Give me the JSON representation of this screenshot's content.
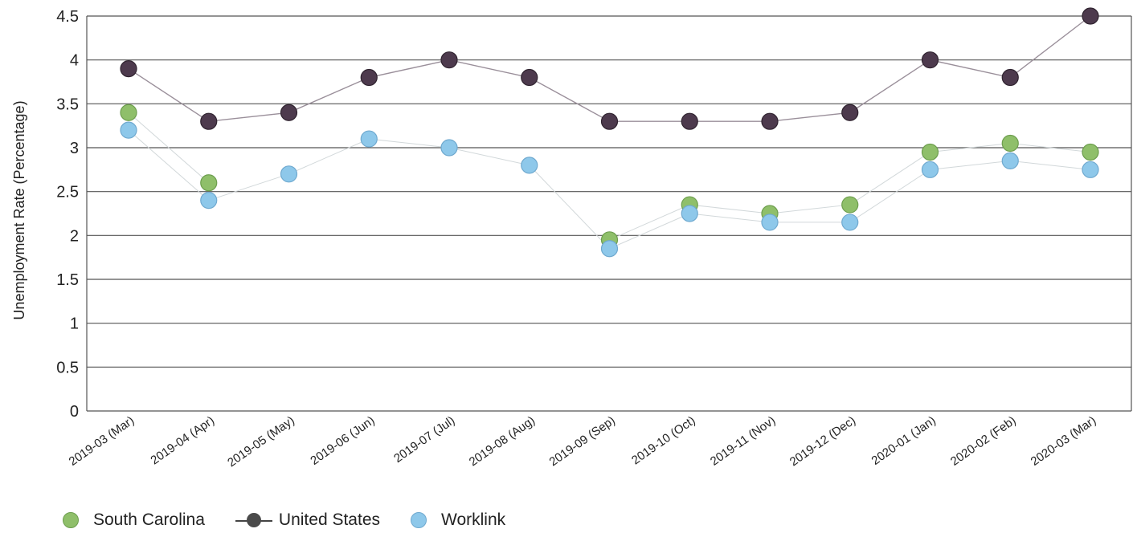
{
  "chart_data": {
    "type": "line",
    "title": "",
    "ylabel": "Unemployment Rate (Percentage)",
    "xlabel": "",
    "ylim": [
      0,
      4.5
    ],
    "yticks": [
      "0",
      "0.5",
      "1",
      "1.5",
      "2",
      "2.5",
      "3",
      "3.5",
      "4",
      "4.5"
    ],
    "grid": true,
    "legend_position": "bottom-left",
    "categories": [
      "2019-03 (Mar)",
      "2019-04 (Apr)",
      "2019-05 (May)",
      "2019-06 (Jun)",
      "2019-07 (Jul)",
      "2019-08 (Aug)",
      "2019-09 (Sep)",
      "2019-10 (Oct)",
      "2019-11 (Nov)",
      "2019-12 (Dec)",
      "2020-01 (Jan)",
      "2020-02 (Feb)",
      "2020-03 (Mar)"
    ],
    "series": [
      {
        "name": "South Carolina",
        "color": "#8fbf6a",
        "line": false,
        "values": [
          3.4,
          2.6,
          null,
          null,
          null,
          null,
          1.95,
          2.35,
          2.25,
          2.35,
          2.95,
          3.05,
          2.95
        ]
      },
      {
        "name": "United States",
        "color": "#4d3a4d",
        "line": true,
        "values": [
          3.9,
          3.3,
          3.4,
          3.8,
          4.0,
          3.8,
          3.3,
          3.3,
          3.3,
          3.4,
          4.0,
          3.8,
          4.5
        ]
      },
      {
        "name": "Worklink",
        "color": "#8ec8ea",
        "line": false,
        "values": [
          3.2,
          2.4,
          2.7,
          3.1,
          3.0,
          2.8,
          1.85,
          2.25,
          2.15,
          2.15,
          2.75,
          2.85,
          2.75
        ]
      }
    ]
  },
  "legend": {
    "south_carolina": "South Carolina",
    "united_states": "United States",
    "worklink": "Worklink"
  }
}
